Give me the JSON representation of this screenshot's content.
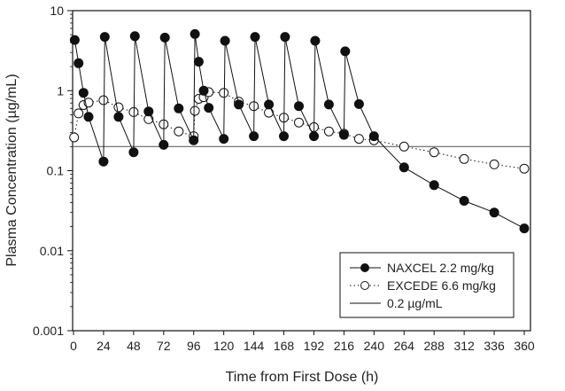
{
  "chart_data": {
    "type": "line",
    "title": "",
    "xlabel": "Time from First Dose (h)",
    "ylabel": "Plasma Concentration (µg/mL)",
    "xlim": [
      0,
      360
    ],
    "ylim": [
      0.001,
      10
    ],
    "yscale": "log",
    "grid": false,
    "x_ticks": [
      0,
      24,
      48,
      72,
      96,
      120,
      144,
      168,
      192,
      216,
      240,
      264,
      288,
      312,
      336,
      360
    ],
    "y_ticks": [
      {
        "value": 0.001,
        "label": "0.001"
      },
      {
        "value": 0.01,
        "label": "0.01"
      },
      {
        "value": 0.1,
        "label": "0.1"
      },
      {
        "value": 1,
        "label": "1"
      },
      {
        "value": 10,
        "label": "10"
      }
    ],
    "legend_position": "bottom-right",
    "series": [
      {
        "name": "NAXCEL 2.2 mg/kg",
        "marker": "filled-circle",
        "line": "solid",
        "color": "#111111",
        "x": [
          1,
          4,
          8,
          12,
          24,
          25,
          36,
          48,
          49,
          60,
          72,
          73,
          84,
          96,
          97,
          100,
          104,
          108,
          120,
          121,
          132,
          144,
          145,
          156,
          168,
          169,
          180,
          192,
          193,
          204,
          216,
          217,
          228,
          240,
          264,
          288,
          312,
          336,
          360
        ],
        "y": [
          4.3,
          2.2,
          0.94,
          0.47,
          0.13,
          4.7,
          0.47,
          0.17,
          4.8,
          0.55,
          0.21,
          4.6,
          0.6,
          0.24,
          5.1,
          2.3,
          1.0,
          0.61,
          0.25,
          4.2,
          0.67,
          0.27,
          4.7,
          0.67,
          0.27,
          4.7,
          0.64,
          0.27,
          4.2,
          0.67,
          0.28,
          3.1,
          0.68,
          0.27,
          0.11,
          0.066,
          0.042,
          0.03,
          0.019
        ]
      },
      {
        "name": "EXCEDE 6.6 mg/kg",
        "marker": "open-circle",
        "line": "dotted",
        "color": "#111111",
        "x": [
          0.5,
          4,
          8,
          12,
          24,
          36,
          48,
          60,
          72,
          84,
          96,
          97,
          100,
          104,
          108,
          120,
          132,
          144,
          156,
          168,
          180,
          192,
          204,
          216,
          228,
          240,
          264,
          288,
          312,
          336,
          360
        ],
        "y": [
          0.26,
          0.52,
          0.66,
          0.71,
          0.76,
          0.62,
          0.54,
          0.44,
          0.38,
          0.31,
          0.27,
          0.56,
          0.79,
          0.83,
          0.96,
          0.94,
          0.73,
          0.64,
          0.53,
          0.46,
          0.4,
          0.35,
          0.31,
          0.29,
          0.25,
          0.24,
          0.2,
          0.17,
          0.14,
          0.12,
          0.106
        ]
      }
    ],
    "reference_lines": [
      {
        "name": "0.2 µg/mL",
        "y": 0.2,
        "line": "solid",
        "color": "#666666"
      }
    ]
  }
}
